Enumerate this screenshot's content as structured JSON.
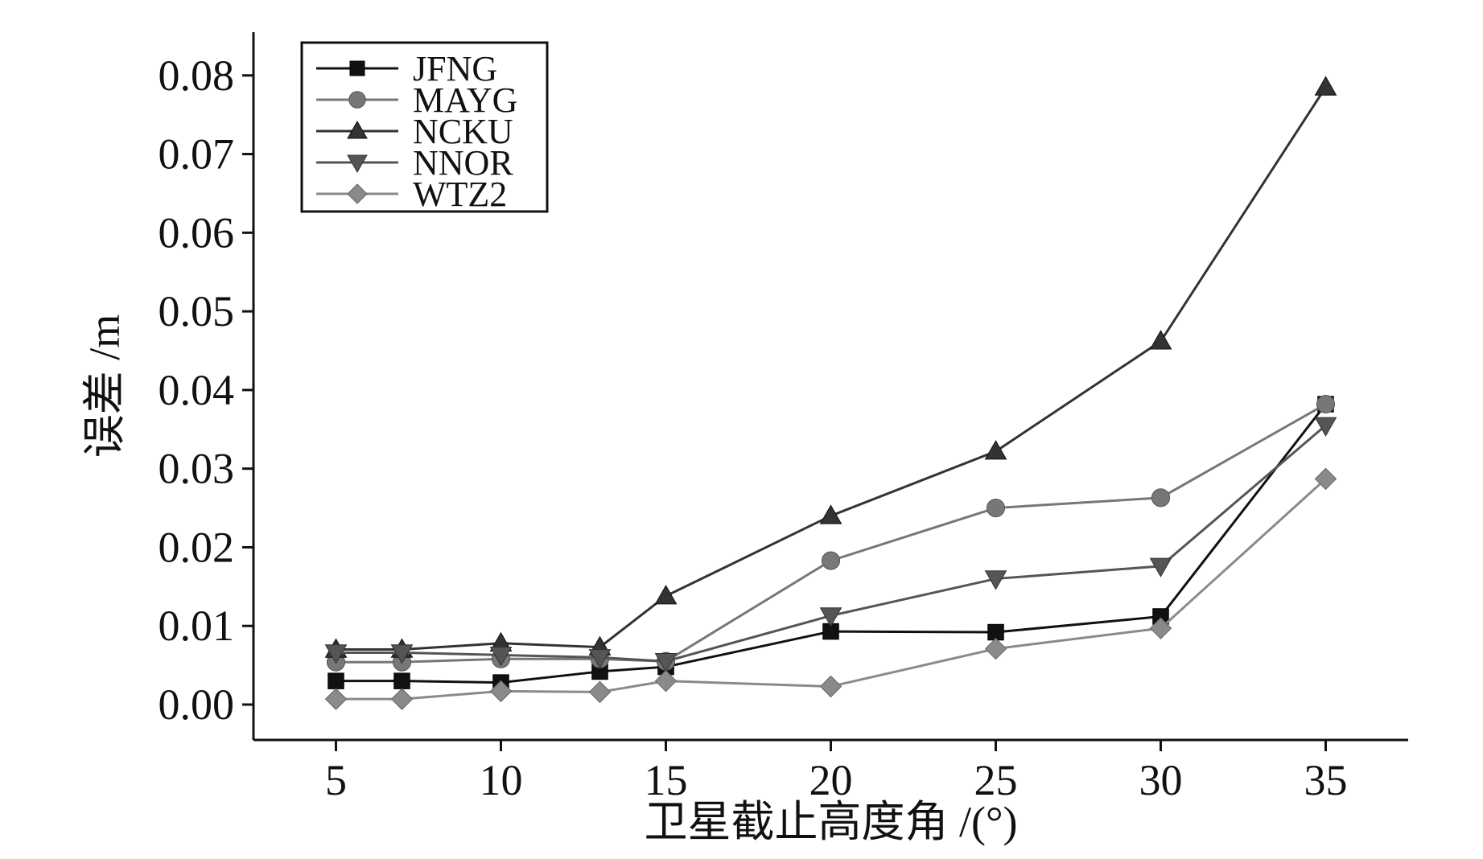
{
  "chart_data": {
    "type": "line",
    "title": "",
    "xlabel": "卫星截止高度角 /(°)",
    "ylabel": "误差 /m",
    "x": [
      5,
      7,
      10,
      13,
      15,
      20,
      25,
      30,
      35
    ],
    "xlim": [
      2.5,
      37.5
    ],
    "ylim": [
      -0.0045,
      0.0855
    ],
    "xticks": [
      5,
      10,
      15,
      20,
      25,
      30,
      35
    ],
    "yticks": [
      0.0,
      0.01,
      0.02,
      0.03,
      0.04,
      0.05,
      0.06,
      0.07,
      0.08
    ],
    "ytick_labels": [
      "0.00",
      "0.01",
      "0.02",
      "0.03",
      "0.04",
      "0.05",
      "0.06",
      "0.07",
      "0.08"
    ],
    "xtick_labels": [
      "5",
      "10",
      "15",
      "20",
      "25",
      "30",
      "35"
    ],
    "grid": false,
    "legend_position": "top-left",
    "series": [
      {
        "name": "JFNG",
        "marker": "square",
        "color": "#111111",
        "values": [
          0.003,
          0.003,
          0.0028,
          0.0042,
          0.0048,
          0.0093,
          0.0092,
          0.0112,
          0.0382
        ]
      },
      {
        "name": "MAYG",
        "marker": "circle",
        "color": "#777777",
        "values": [
          0.0054,
          0.0054,
          0.0058,
          0.0058,
          0.0055,
          0.0183,
          0.025,
          0.0263,
          0.0382
        ]
      },
      {
        "name": "NCKU",
        "marker": "triangle-up",
        "color": "#333333",
        "values": [
          0.007,
          0.007,
          0.0078,
          0.0073,
          0.0138,
          0.024,
          0.0322,
          0.0462,
          0.0785
        ]
      },
      {
        "name": "NNOR",
        "marker": "triangle-down",
        "color": "#555555",
        "values": [
          0.0066,
          0.0066,
          0.0063,
          0.006,
          0.0055,
          0.0113,
          0.016,
          0.0176,
          0.0355
        ]
      },
      {
        "name": "WTZ2",
        "marker": "diamond",
        "color": "#8a8a8a",
        "values": [
          0.0007,
          0.0007,
          0.0017,
          0.0016,
          0.003,
          0.0023,
          0.0071,
          0.0097,
          0.0287
        ]
      }
    ]
  }
}
